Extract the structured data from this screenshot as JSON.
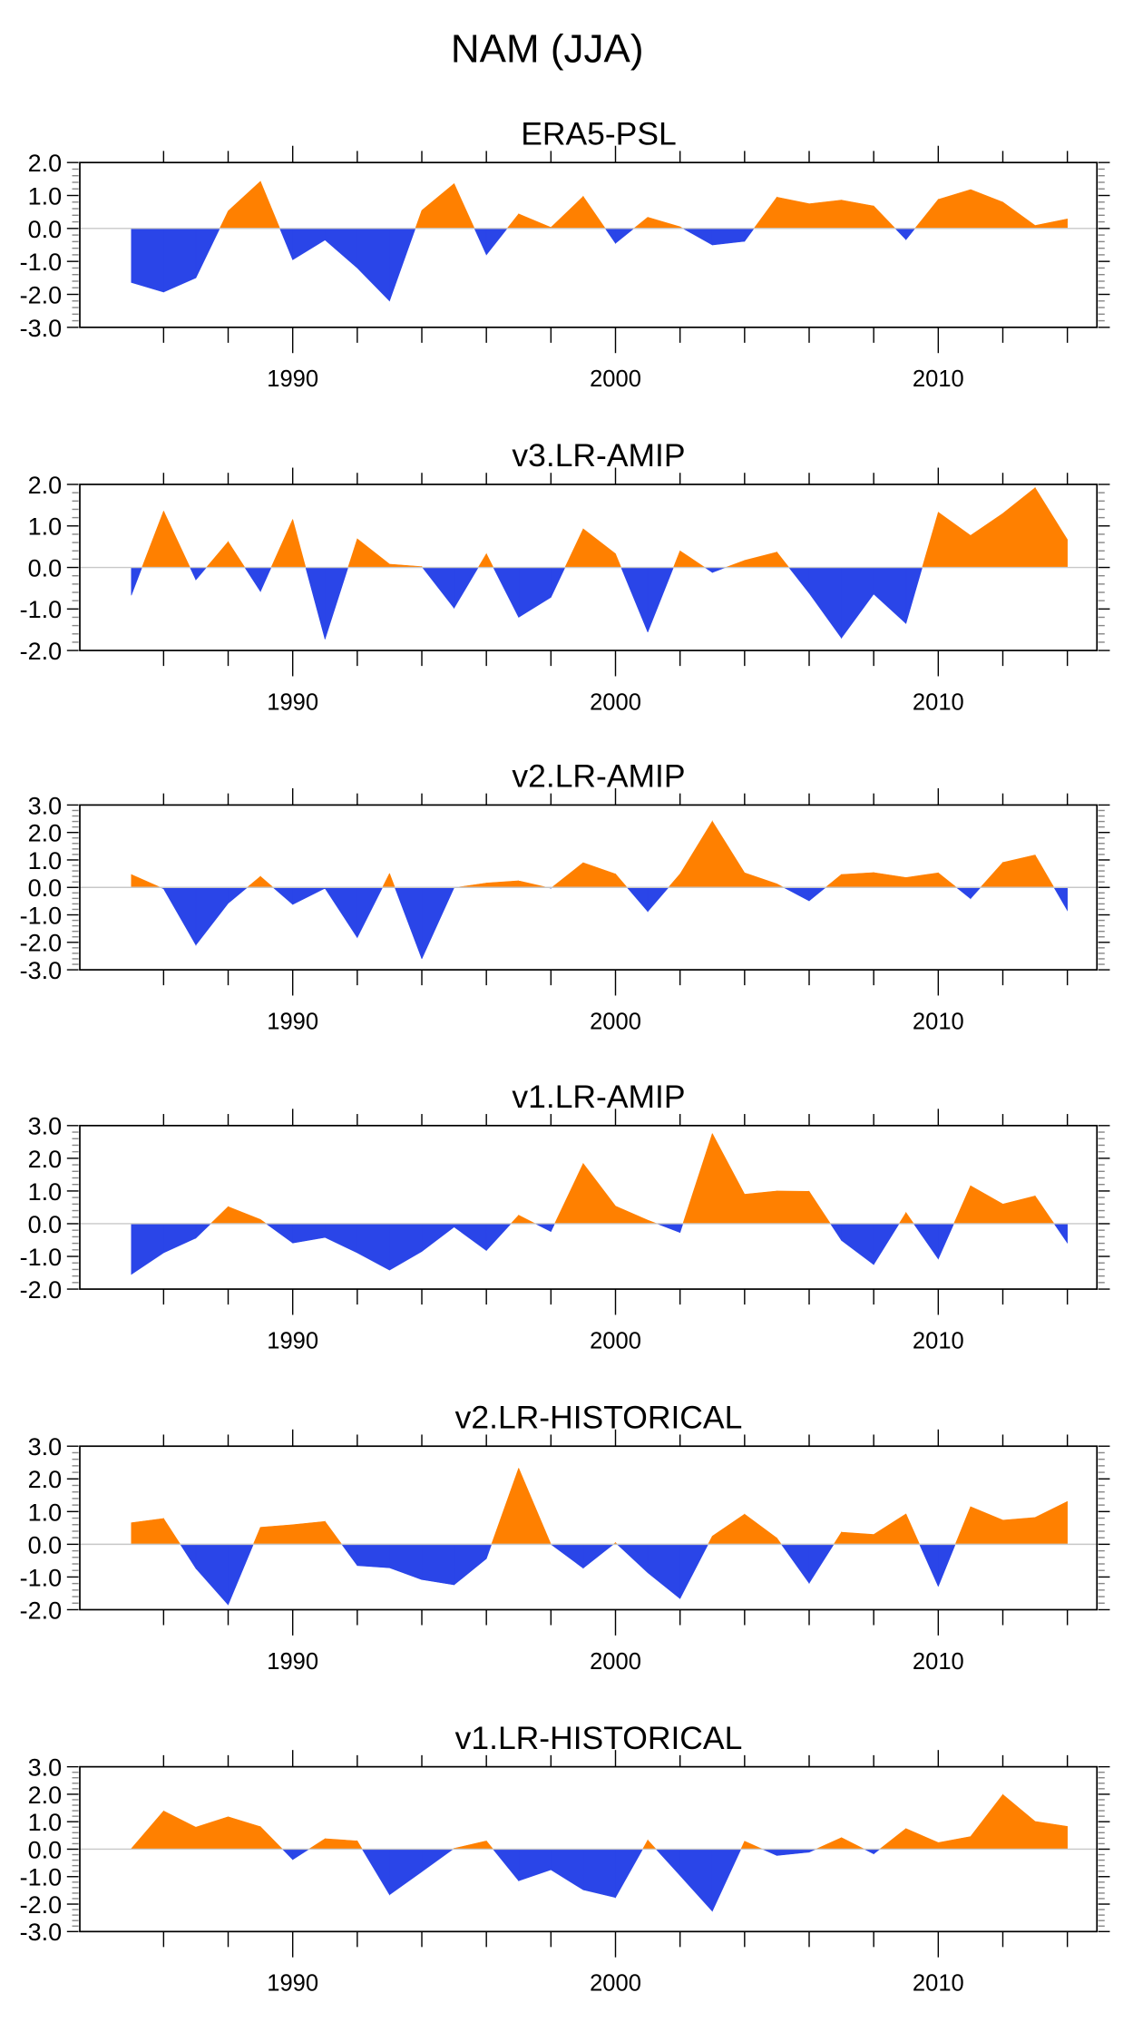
{
  "figure_title": "NAM (JJA)",
  "colors": {
    "positive": "#ff8000",
    "negative": "#2a45e8",
    "zero_line": "#c8c8c8",
    "axis": "#000000"
  },
  "chart_data": [
    {
      "type": "area",
      "title": "ERA5-PSL",
      "xlabel": "",
      "ylabel": "",
      "x": [
        1985,
        1986,
        1987,
        1988,
        1989,
        1990,
        1991,
        1992,
        1993,
        1994,
        1995,
        1996,
        1997,
        1998,
        1999,
        2000,
        2001,
        2002,
        2003,
        2004,
        2005,
        2006,
        2007,
        2008,
        2009,
        2010,
        2011,
        2012,
        2013,
        2014
      ],
      "values": [
        -1.64,
        -1.93,
        -1.5,
        0.53,
        1.43,
        -0.95,
        -0.35,
        -1.2,
        -2.2,
        0.55,
        1.36,
        -0.8,
        0.44,
        0.03,
        0.97,
        -0.45,
        0.34,
        0.05,
        -0.5,
        -0.39,
        0.95,
        0.75,
        0.86,
        0.68,
        -0.34,
        0.88,
        1.18,
        0.8,
        0.09,
        0.29
      ],
      "ylim": [
        -3.0,
        2.0
      ],
      "yticks": [
        "2.0",
        "1.0",
        "0.0",
        "-1.0",
        "-2.0",
        "-3.0"
      ],
      "xticks": [
        "1990",
        "2000",
        "2010"
      ],
      "xlim": [
        1984,
        2016
      ],
      "grid": false
    },
    {
      "type": "area",
      "title": "v3.LR-AMIP",
      "xlabel": "",
      "ylabel": "",
      "x": [
        1985,
        1986,
        1987,
        1988,
        1989,
        1990,
        1991,
        1992,
        1993,
        1994,
        1995,
        1996,
        1997,
        1998,
        1999,
        2000,
        2001,
        2002,
        2003,
        2004,
        2005,
        2006,
        2007,
        2008,
        2009,
        2010,
        2011,
        2012,
        2013,
        2014
      ],
      "values": [
        -0.67,
        1.36,
        -0.3,
        0.62,
        -0.58,
        1.16,
        -1.73,
        0.69,
        0.08,
        0.02,
        -0.98,
        0.33,
        -1.2,
        -0.72,
        0.93,
        0.33,
        -1.56,
        0.4,
        -0.12,
        0.17,
        0.37,
        -0.62,
        -1.7,
        -0.64,
        -1.35,
        1.33,
        0.77,
        1.3,
        1.92,
        0.67
      ],
      "ylim": [
        -2.0,
        2.0
      ],
      "yticks": [
        "2.0",
        "1.0",
        "0.0",
        "-1.0",
        "-2.0"
      ],
      "xticks": [
        "1990",
        "2000",
        "2010"
      ],
      "xlim": [
        1984,
        2016
      ],
      "grid": false
    },
    {
      "type": "area",
      "title": "v2.LR-AMIP",
      "xlabel": "",
      "ylabel": "",
      "x": [
        1985,
        1986,
        1987,
        1988,
        1989,
        1990,
        1991,
        1992,
        1993,
        1994,
        1995,
        1996,
        1997,
        1998,
        1999,
        2000,
        2001,
        2002,
        2003,
        2004,
        2005,
        2006,
        2007,
        2008,
        2009,
        2010,
        2011,
        2012,
        2013,
        2014
      ],
      "values": [
        0.47,
        -0.05,
        -2.1,
        -0.58,
        0.4,
        -0.62,
        -0.03,
        -1.83,
        0.51,
        -2.6,
        -0.01,
        0.16,
        0.24,
        -0.03,
        0.9,
        0.49,
        -0.88,
        0.49,
        2.41,
        0.53,
        0.13,
        -0.49,
        0.47,
        0.54,
        0.36,
        0.53,
        -0.41,
        0.91,
        1.18,
        -0.84
      ],
      "ylim": [
        -3.0,
        3.0
      ],
      "yticks": [
        "3.0",
        "2.0",
        "1.0",
        "0.0",
        "-1.0",
        "-2.0",
        "-3.0"
      ],
      "xticks": [
        "1990",
        "2000",
        "2010"
      ],
      "xlim": [
        1984,
        2016
      ],
      "grid": false
    },
    {
      "type": "area",
      "title": "v1.LR-AMIP",
      "xlabel": "",
      "ylabel": "",
      "x": [
        1985,
        1986,
        1987,
        1988,
        1989,
        1990,
        1991,
        1992,
        1993,
        1994,
        1995,
        1996,
        1997,
        1998,
        1999,
        2000,
        2001,
        2002,
        2003,
        2004,
        2005,
        2006,
        2007,
        2008,
        2009,
        2010,
        2011,
        2012,
        2013,
        2014
      ],
      "values": [
        -1.55,
        -0.89,
        -0.44,
        0.52,
        0.13,
        -0.59,
        -0.42,
        -0.89,
        -1.42,
        -0.85,
        -0.1,
        -0.82,
        0.26,
        -0.24,
        1.84,
        0.54,
        0.11,
        -0.27,
        2.76,
        0.9,
        1.0,
        0.99,
        -0.51,
        -1.25,
        0.34,
        -1.08,
        1.16,
        0.6,
        0.85,
        -0.59
      ],
      "ylim": [
        -2.0,
        3.0
      ],
      "yticks": [
        "3.0",
        "2.0",
        "1.0",
        "0.0",
        "-1.0",
        "-2.0"
      ],
      "xticks": [
        "1990",
        "2000",
        "2010"
      ],
      "xlim": [
        1984,
        2016
      ],
      "grid": false
    },
    {
      "type": "area",
      "title": "v2.LR-HISTORICAL",
      "xlabel": "",
      "ylabel": "",
      "x": [
        1985,
        1986,
        1987,
        1988,
        1989,
        1990,
        1991,
        1992,
        1993,
        1994,
        1995,
        1996,
        1997,
        1998,
        1999,
        2000,
        2001,
        2002,
        2003,
        2004,
        2005,
        2006,
        2007,
        2008,
        2009,
        2010,
        2011,
        2012,
        2013,
        2014
      ],
      "values": [
        0.66,
        0.79,
        -0.74,
        -1.85,
        0.52,
        0.6,
        0.7,
        -0.65,
        -0.72,
        -1.08,
        -1.24,
        -0.44,
        2.33,
        0.0,
        -0.73,
        0.05,
        -0.87,
        -1.66,
        0.25,
        0.92,
        0.19,
        -1.19,
        0.37,
        0.3,
        0.93,
        -1.29,
        1.15,
        0.74,
        0.82,
        1.31
      ],
      "ylim": [
        -2.0,
        3.0
      ],
      "yticks": [
        "3.0",
        "2.0",
        "1.0",
        "0.0",
        "-1.0",
        "-2.0"
      ],
      "xticks": [
        "1990",
        "2000",
        "2010"
      ],
      "xlim": [
        1984,
        2016
      ],
      "grid": false
    },
    {
      "type": "area",
      "title": "v1.LR-HISTORICAL",
      "xlabel": "",
      "ylabel": "",
      "x": [
        1985,
        1986,
        1987,
        1988,
        1989,
        1990,
        1991,
        1992,
        1993,
        1994,
        1995,
        1996,
        1997,
        1998,
        1999,
        2000,
        2001,
        2002,
        2003,
        2004,
        2005,
        2006,
        2007,
        2008,
        2009,
        2010,
        2011,
        2012,
        2013,
        2014
      ],
      "values": [
        0.02,
        1.39,
        0.8,
        1.18,
        0.82,
        -0.38,
        0.38,
        0.3,
        -1.66,
        -0.82,
        0.03,
        0.3,
        -1.15,
        -0.75,
        -1.48,
        -1.76,
        0.33,
        -0.96,
        -2.26,
        0.29,
        -0.23,
        -0.11,
        0.42,
        -0.17,
        0.75,
        0.24,
        0.46,
        1.99,
        1.01,
        0.83
      ],
      "ylim": [
        -3.0,
        3.0
      ],
      "yticks": [
        "3.0",
        "2.0",
        "1.0",
        "0.0",
        "-1.0",
        "-2.0",
        "-3.0"
      ],
      "xticks": [
        "1990",
        "2000",
        "2010"
      ],
      "xlim": [
        1984,
        2016
      ],
      "grid": false
    }
  ]
}
